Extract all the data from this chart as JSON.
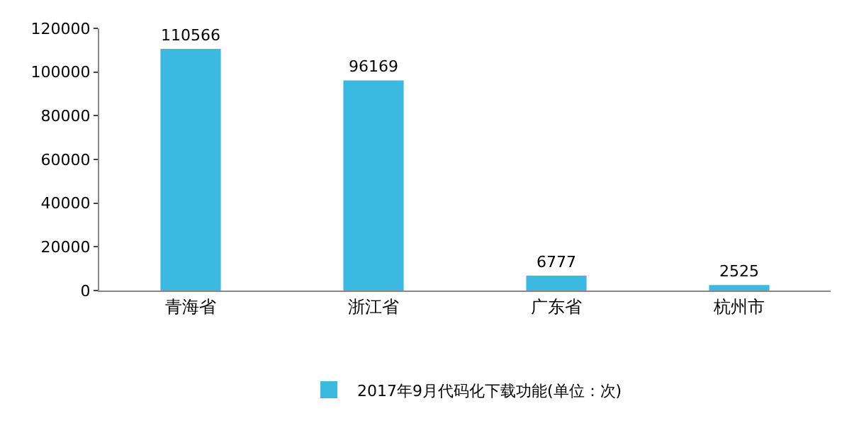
{
  "chart_data": {
    "type": "bar",
    "categories": [
      "青海省",
      "浙江省",
      "广东省",
      "杭州市"
    ],
    "series": [
      {
        "name": "2017年9月代码化下载功能(单位：次)",
        "color": "#3bb9e0",
        "values": [
          110566,
          96169,
          6777,
          2525
        ]
      }
    ],
    "ylim": [
      0,
      120000
    ],
    "yticks": [
      0,
      20000,
      40000,
      60000,
      80000,
      100000,
      120000
    ],
    "data_labels": true,
    "legend": "bottom"
  }
}
